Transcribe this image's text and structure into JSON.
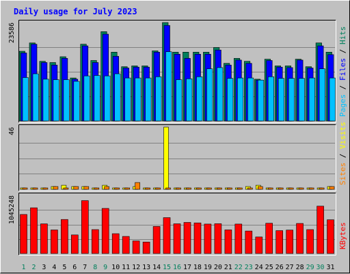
{
  "chart_data": {
    "type": "bar",
    "title": "Daily usage for July 2023",
    "categories": [
      "1",
      "2",
      "3",
      "4",
      "5",
      "6",
      "7",
      "8",
      "9",
      "10",
      "11",
      "12",
      "13",
      "14",
      "15",
      "16",
      "17",
      "18",
      "19",
      "20",
      "21",
      "22",
      "23",
      "24",
      "25",
      "26",
      "27",
      "28",
      "29",
      "30",
      "31"
    ],
    "weekend_days": [
      1,
      2,
      8,
      9,
      15,
      16,
      22,
      23,
      29,
      30
    ],
    "panels": [
      {
        "name": "hits-files-pages",
        "ymax_label": "23586",
        "ymax": 23586,
        "legend": [
          "Pages",
          "Files",
          "Hits"
        ],
        "series": [
          {
            "name": "Hits",
            "color": "#00805c",
            "values": [
              16700,
              18700,
              14300,
              14000,
              15400,
              10300,
              18400,
              14500,
              21400,
              16500,
              13000,
              13200,
              13200,
              16800,
              23586,
              16500,
              16500,
              16500,
              16500,
              17600,
              13800,
              15000,
              14300,
              10000,
              14800,
              13200,
              13200,
              14800,
              13000,
              18700,
              16500
            ]
          },
          {
            "name": "Files",
            "color": "#0000ff",
            "values": [
              16300,
              18400,
              14000,
              13400,
              15000,
              10000,
              18000,
              14000,
              20800,
              15500,
              12700,
              12900,
              12900,
              16500,
              22900,
              16000,
              15000,
              16000,
              16000,
              17000,
              13400,
              14600,
              13800,
              9800,
              14500,
              12900,
              12800,
              14600,
              12700,
              18000,
              15900
            ]
          },
          {
            "name": "Pages",
            "color": "#00c0ff",
            "values": [
              10400,
              11300,
              10000,
              9900,
              9900,
              9500,
              10800,
              10900,
              10800,
              11300,
              10300,
              10300,
              10300,
              10600,
              16600,
              9900,
              10100,
              10600,
              12500,
              12800,
              10200,
              10300,
              10300,
              9800,
              10600,
              10200,
              10200,
              10200,
              10300,
              12500,
              10300
            ]
          }
        ]
      },
      {
        "name": "visits-sites",
        "ymax_label": "46",
        "ymax": 46,
        "legend": [
          "Sites",
          "Visits"
        ],
        "series": [
          {
            "name": "Visits",
            "color": "#ffff00",
            "values": [
              1,
              1,
              1,
              2,
              3,
              2,
              2,
              1,
              3,
              1,
              1,
              2,
              1,
              1,
              46,
              1,
              1,
              1,
              1,
              1,
              1,
              1,
              2,
              3,
              1,
              1,
              1,
              1,
              1,
              1,
              2
            ]
          },
          {
            "name": "Sites",
            "color": "#ff8000",
            "values": [
              1,
              1,
              1,
              2,
              1,
              2,
              2,
              1,
              2,
              1,
              1,
              5,
              1,
              1,
              1,
              1,
              1,
              1,
              1,
              1,
              1,
              1,
              1,
              2,
              1,
              1,
              1,
              1,
              1,
              1,
              2
            ]
          }
        ]
      },
      {
        "name": "kbytes",
        "ymax_label": "1045248",
        "ymax": 1045248,
        "legend": [
          "KBytes"
        ],
        "series": [
          {
            "name": "KBytes",
            "color": "#ff0000",
            "values": [
              702000,
              823000,
              534000,
              424000,
              612000,
              334000,
              952000,
              430000,
              812000,
              357000,
              308000,
              226000,
              206000,
              487000,
              646000,
              535000,
              560000,
              551000,
              530000,
              536000,
              425000,
              530000,
              404000,
              297000,
              545000,
              412000,
              422000,
              541000,
              430000,
              852000,
              608000
            ]
          }
        ]
      }
    ]
  }
}
